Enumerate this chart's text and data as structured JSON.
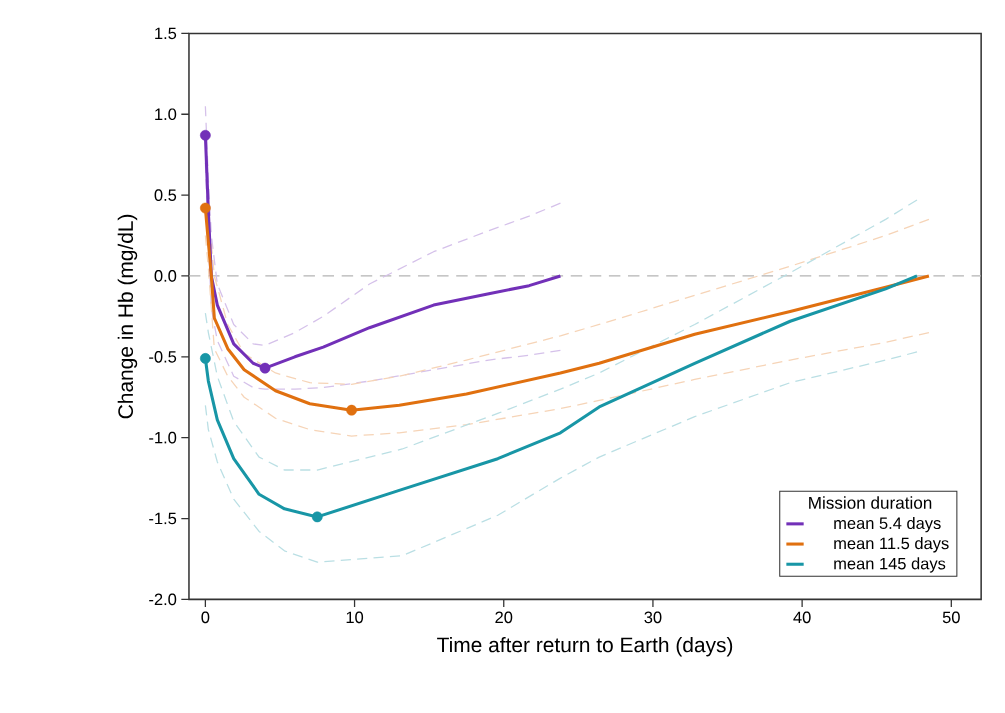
{
  "chart_data": {
    "type": "line",
    "xlabel": "Time after return to Earth (days)",
    "ylabel": "Change in Hb (mg/dL)",
    "legend_title": "Mission duration",
    "legend": "bottom right",
    "grid": false,
    "xlim": [
      -1.1,
      52
    ],
    "ylim": [
      -2.0,
      1.5
    ],
    "xticks": [
      0,
      10,
      20,
      30,
      40,
      50
    ],
    "yticks": [
      {
        "value": 1.5,
        "label": "1.5"
      },
      {
        "value": 1.0,
        "label": "1.0"
      },
      {
        "value": 0.5,
        "label": "0.5"
      },
      {
        "value": 0.0,
        "label": "0.0"
      },
      {
        "value": -0.5,
        "label": "-0.5"
      },
      {
        "value": -1.0,
        "label": "-1.0"
      },
      {
        "value": -1.5,
        "label": "-1.5"
      },
      {
        "value": -2.0,
        "label": "-2.0"
      }
    ],
    "ref_lines": [
      {
        "axis": "y",
        "value": 0,
        "color": "#b4b4b4",
        "line_style": "dashed"
      }
    ],
    "series": [
      {
        "name": "mean 5.4 days",
        "color": "#7230b8",
        "line_style": "solid",
        "x": [
          0,
          0.2,
          0.4,
          0.8,
          1.9,
          3.2,
          4,
          6,
          7.9,
          11,
          15.3,
          19,
          21.7,
          23.8
        ],
        "values": [
          0.87,
          0.4,
          0.0,
          -0.18,
          -0.42,
          -0.54,
          -0.57,
          -0.5,
          -0.44,
          -0.32,
          -0.18,
          -0.11,
          -0.06,
          0.0
        ]
      },
      {
        "name": "mean 11.5 days",
        "color": "#e0700f",
        "line_style": "solid",
        "x": [
          0,
          0.2,
          0.4,
          0.6,
          1.5,
          2.6,
          4.7,
          7,
          9.8,
          13,
          17.5,
          23.8,
          26.4,
          32.8,
          39.2,
          45.6,
          48.5
        ],
        "values": [
          0.42,
          0.21,
          0.0,
          -0.26,
          -0.45,
          -0.58,
          -0.71,
          -0.79,
          -0.83,
          -0.8,
          -0.73,
          -0.6,
          -0.54,
          -0.36,
          -0.22,
          -0.07,
          0.0
        ]
      },
      {
        "name": "mean 145 days",
        "color": "#1896a6",
        "line_style": "solid",
        "x": [
          0,
          0.2,
          0.8,
          1.9,
          3.6,
          5.3,
          7.5,
          13.2,
          19.6,
          23.8,
          26.4,
          32.8,
          39.2,
          45.6,
          47.7
        ],
        "values": [
          -0.51,
          -0.65,
          -0.89,
          -1.13,
          -1.35,
          -1.44,
          -1.49,
          -1.32,
          -1.13,
          -0.97,
          -0.81,
          -0.54,
          -0.28,
          -0.08,
          0.0
        ]
      },
      {
        "color": "#d5c1ea",
        "line_style": "dashed",
        "x": [
          0,
          0.2,
          0.4,
          0.8,
          1.9,
          3.2,
          4,
          6,
          7.9,
          11,
          15.3,
          19,
          21.7,
          23.8
        ],
        "values": [
          1.05,
          0.6,
          0.25,
          -0.05,
          -0.3,
          -0.42,
          -0.43,
          -0.35,
          -0.25,
          -0.05,
          0.15,
          0.28,
          0.37,
          0.45
        ]
      },
      {
        "color": "#d5c1ea",
        "line_style": "dashed",
        "x": [
          0,
          0.2,
          0.4,
          0.8,
          1.9,
          3.2,
          4,
          6,
          7.9,
          11,
          15.3,
          19,
          21.7,
          23.8
        ],
        "values": [
          0.7,
          0.2,
          -0.2,
          -0.4,
          -0.62,
          -0.69,
          -0.7,
          -0.7,
          -0.69,
          -0.65,
          -0.58,
          -0.52,
          -0.49,
          -0.46
        ]
      },
      {
        "color": "#f6d4b7",
        "line_style": "dashed",
        "x": [
          0.4,
          0.6,
          1.5,
          2.6,
          4.7,
          7,
          9.8,
          13,
          17.5,
          23.8,
          26.4,
          32.8,
          39.2,
          45.6,
          48.5
        ],
        "values": [
          0.2,
          0.0,
          -0.3,
          -0.48,
          -0.6,
          -0.66,
          -0.67,
          -0.62,
          -0.52,
          -0.37,
          -0.3,
          -0.12,
          0.06,
          0.25,
          0.35
        ]
      },
      {
        "color": "#f6d4b7",
        "line_style": "dashed",
        "x": [
          0,
          0.2,
          0.4,
          0.6,
          1.5,
          2.6,
          4.7,
          7,
          9.8,
          13,
          17.5,
          23.8,
          26.4,
          32.8,
          39.2,
          45.6,
          48.5
        ],
        "values": [
          0.25,
          0.05,
          -0.2,
          -0.45,
          -0.62,
          -0.75,
          -0.88,
          -0.95,
          -0.99,
          -0.97,
          -0.92,
          -0.82,
          -0.77,
          -0.64,
          -0.52,
          -0.41,
          -0.35
        ]
      },
      {
        "color": "#badfe4",
        "line_style": "dashed",
        "x": [
          0,
          0.2,
          0.8,
          1.9,
          3.6,
          5.3,
          7.5,
          13.2,
          19.6,
          23.8,
          26.4,
          32.8,
          39.2,
          45.6,
          47.7
        ],
        "values": [
          -0.23,
          -0.35,
          -0.62,
          -0.9,
          -1.12,
          -1.2,
          -1.2,
          -1.07,
          -0.85,
          -0.7,
          -0.6,
          -0.3,
          0.02,
          0.35,
          0.47
        ]
      },
      {
        "color": "#badfe4",
        "line_style": "dashed",
        "x": [
          0,
          0.2,
          0.8,
          1.9,
          3.6,
          5.3,
          7.5,
          13.2,
          19.6,
          23.8,
          26.4,
          32.8,
          39.2,
          45.6,
          47.7
        ],
        "values": [
          -0.8,
          -0.95,
          -1.15,
          -1.38,
          -1.58,
          -1.7,
          -1.77,
          -1.73,
          -1.48,
          -1.25,
          -1.12,
          -0.87,
          -0.66,
          -0.52,
          -0.47
        ]
      },
      {
        "type": "scatter",
        "color": "#7230b8",
        "x": [
          0,
          4
        ],
        "values": [
          0.87,
          -0.57
        ]
      },
      {
        "type": "scatter",
        "color": "#e0700f",
        "x": [
          0,
          9.8
        ],
        "values": [
          0.42,
          -0.83
        ]
      },
      {
        "type": "scatter",
        "color": "#1896a6",
        "x": [
          0,
          7.5
        ],
        "values": [
          -0.51,
          -1.49
        ]
      }
    ]
  }
}
